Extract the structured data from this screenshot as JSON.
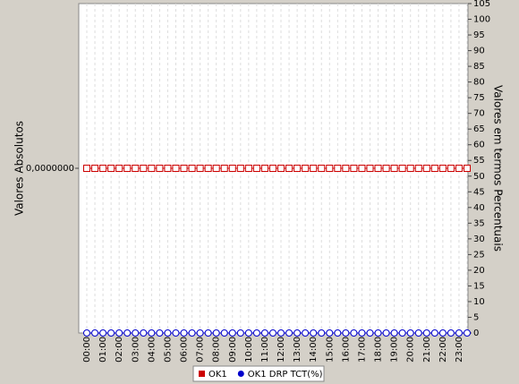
{
  "chart_data": {
    "type": "line",
    "categories": [
      "00:00",
      null,
      "01:00",
      null,
      "02:00",
      null,
      "03:00",
      null,
      "04:00",
      null,
      "05:00",
      null,
      "06:00",
      null,
      "07:00",
      null,
      "08:00",
      null,
      "09:00",
      null,
      "10:00",
      null,
      "11:00",
      null,
      "12:00",
      null,
      "13:00",
      null,
      "14:00",
      null,
      "15:00",
      null,
      "16:00",
      null,
      "17:00",
      null,
      "18:00",
      null,
      "19:00",
      null,
      "20:00",
      null,
      "21:00",
      null,
      "22:00",
      null,
      "23:00",
      null
    ],
    "ylabel": "Valores Absolutos",
    "y2label": "Valores em termos Percentuais",
    "ylim": [
      -1,
      1
    ],
    "yticks": [
      {
        "value": 0,
        "label": "0,0000000"
      }
    ],
    "y2lim": [
      0,
      105
    ],
    "y2ticks": [
      0,
      5,
      10,
      15,
      20,
      25,
      30,
      35,
      40,
      45,
      50,
      55,
      60,
      65,
      70,
      75,
      80,
      85,
      90,
      95,
      100,
      105
    ],
    "grid": true,
    "legend": "bottom",
    "series": [
      {
        "name": "OK1",
        "color": "#cc0000",
        "marker": "square",
        "values": [
          0,
          0,
          0,
          0,
          0,
          0,
          0,
          0,
          0,
          0,
          0,
          0,
          0,
          0,
          0,
          0,
          0,
          0,
          0,
          0,
          0,
          0,
          0,
          0,
          0,
          0,
          0,
          0,
          0,
          0,
          0,
          0,
          0,
          0,
          0,
          0,
          0,
          0,
          0,
          0,
          0,
          0,
          0,
          0,
          0,
          0,
          0,
          0
        ]
      },
      {
        "name": "OK1 DRP TCT(%)",
        "color": "#0000cc",
        "marker": "circle",
        "axis": "y2",
        "values": [
          0,
          0,
          0,
          0,
          0,
          0,
          0,
          0,
          0,
          0,
          0,
          0,
          0,
          0,
          0,
          0,
          0,
          0,
          0,
          0,
          0,
          0,
          0,
          0,
          0,
          0,
          0,
          0,
          0,
          0,
          0,
          0,
          0,
          0,
          0,
          0,
          0,
          0,
          0,
          0,
          0,
          0,
          0,
          0,
          0,
          0,
          0,
          0
        ]
      }
    ]
  }
}
